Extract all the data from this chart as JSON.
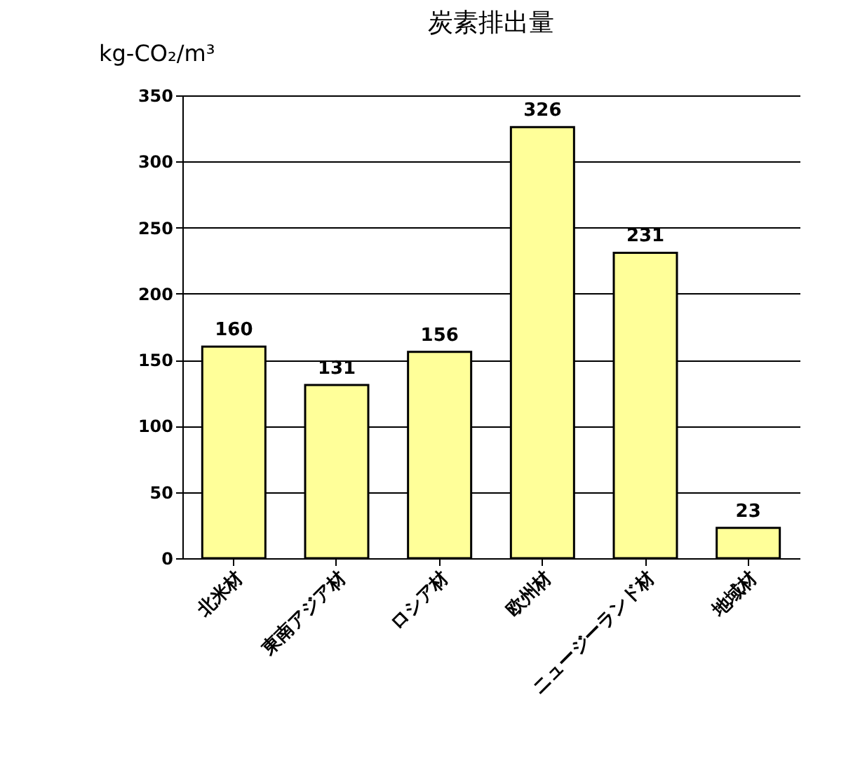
{
  "chart_data": {
    "type": "bar",
    "title": "炭素排出量",
    "ylabel": "kg-CO₂/m³",
    "categories": [
      "北米材",
      "東南アジア材",
      "ロシア材",
      "欧州材",
      "ニュージーランド材",
      "地域材"
    ],
    "values": [
      160,
      131,
      156,
      326,
      231,
      23
    ],
    "color": "#ffff99",
    "ylim": [
      0,
      350
    ],
    "yticks": [
      0,
      50,
      100,
      150,
      200,
      250,
      300,
      350
    ],
    "grid": "y",
    "data_labels": true
  }
}
